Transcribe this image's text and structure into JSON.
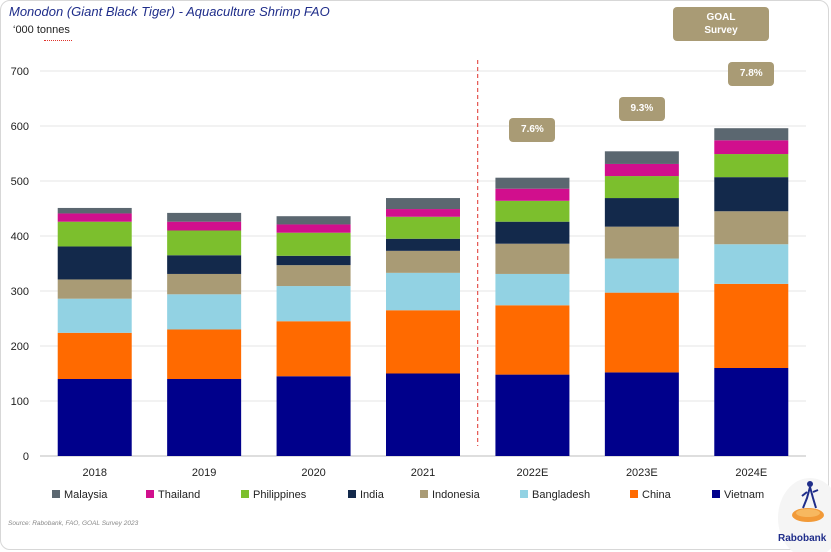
{
  "header": {
    "title": "Monodon (Giant Black Tiger) - Aquaculture Shrimp FAO",
    "unit": "‘000 tonnes",
    "source": "Source: Rabobank, FAO, GOAL Survey 2023",
    "goal_line1": "GOAL",
    "goal_line2": "Survey",
    "logo_text": "Rabobank"
  },
  "chart_data": {
    "type": "bar",
    "stacked": true,
    "title": "Monodon (Giant Black Tiger) - Aquaculture Shrimp FAO",
    "ylabel": "‘000 tonnes",
    "ylim": [
      0,
      700
    ],
    "yticks": [
      0,
      100,
      200,
      300,
      400,
      500,
      600,
      700
    ],
    "categories": [
      "2018",
      "2019",
      "2020",
      "2021",
      "2022E",
      "2023E",
      "2024E"
    ],
    "legend_position": "bottom",
    "forecast_divider_after": "2021",
    "growth_labels": [
      {
        "category": "2022E",
        "label": "7.6%"
      },
      {
        "category": "2023E",
        "label": "9.3%"
      },
      {
        "category": "2024E",
        "label": "7.8%"
      }
    ],
    "series": [
      {
        "name": "Vietnam",
        "color": "#00008b",
        "values": [
          140,
          140,
          145,
          150,
          148,
          152,
          160
        ]
      },
      {
        "name": "China",
        "color": "#ff6a00",
        "values": [
          84,
          90,
          100,
          115,
          126,
          145,
          153
        ]
      },
      {
        "name": "Bangladesh",
        "color": "#92d2e3",
        "values": [
          62,
          64,
          64,
          68,
          57,
          62,
          72
        ]
      },
      {
        "name": "Indonesia",
        "color": "#a99b75",
        "values": [
          35,
          37,
          38,
          40,
          55,
          58,
          60
        ]
      },
      {
        "name": "India",
        "color": "#13294b",
        "values": [
          60,
          34,
          17,
          22,
          40,
          52,
          62
        ]
      },
      {
        "name": "Philippines",
        "color": "#7cbf2d",
        "values": [
          45,
          45,
          42,
          40,
          38,
          40,
          42
        ]
      },
      {
        "name": "Thailand",
        "color": "#d10f8d",
        "values": [
          15,
          16,
          15,
          14,
          22,
          22,
          25
        ]
      },
      {
        "name": "Malaysia",
        "color": "#5b6770",
        "values": [
          10,
          16,
          15,
          20,
          20,
          23,
          22
        ]
      }
    ],
    "legend_order": [
      "Malaysia",
      "Thailand",
      "Philippines",
      "India",
      "Indonesia",
      "Bangladesh",
      "China",
      "Vietnam"
    ]
  }
}
